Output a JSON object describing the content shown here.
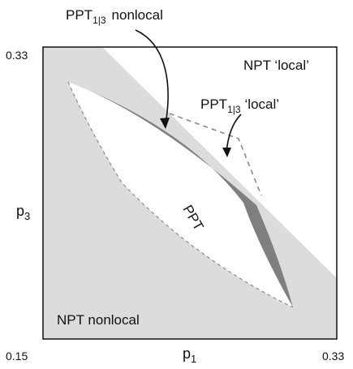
{
  "figure": {
    "colors": {
      "npt_region": "#dcdcdc",
      "ppt_region": "#ffffff",
      "ppt13_nonlocal_band": "#7f7f7f",
      "frame": "#111111",
      "dashed": "#8a8a8a"
    },
    "axes": {
      "x_label_main": "p",
      "x_label_sub": "1",
      "y_label_main": "p",
      "y_label_sub": "3",
      "x_min": "0.15",
      "x_max": "0.33",
      "y_max": "0.33"
    },
    "labels": {
      "npt_local": "NPT ‘local’",
      "npt_nonlocal": "NPT nonlocal",
      "ppt": "PPT",
      "ppt13_nonlocal_main": "PPT",
      "ppt13_nonlocal_sub": "1|3",
      "ppt13_nonlocal_suffix": "nonlocal",
      "ppt13_local_main": "PPT",
      "ppt13_local_sub": "1|3",
      "ppt13_local_suffix": "‘local’"
    }
  }
}
